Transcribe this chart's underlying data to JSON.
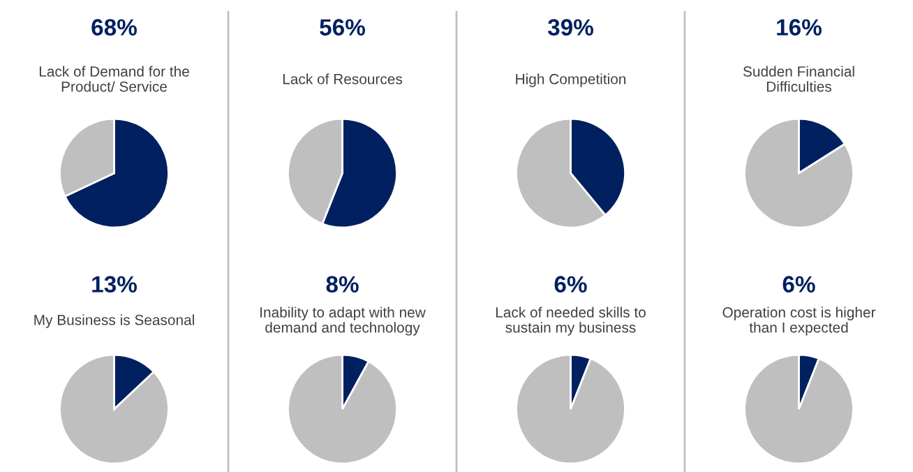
{
  "chart_data": [
    {
      "type": "pie",
      "title": "68%",
      "subtitle": "Lack of Demand for the\nProduct/ Service",
      "categories": [
        null,
        null
      ],
      "values": [
        68,
        32
      ],
      "colors": [
        "#002060",
        "#bfbfbf"
      ]
    },
    {
      "type": "pie",
      "title": "56%",
      "subtitle": "Lack of Resources",
      "categories": [
        null,
        null
      ],
      "values": [
        56,
        44
      ],
      "colors": [
        "#002060",
        "#bfbfbf"
      ]
    },
    {
      "type": "pie",
      "title": "39%",
      "subtitle": "High Competition",
      "categories": [
        null,
        null
      ],
      "values": [
        39,
        61
      ],
      "colors": [
        "#002060",
        "#bfbfbf"
      ]
    },
    {
      "type": "pie",
      "title": "16%",
      "subtitle": "Sudden Financial\nDifficulties",
      "categories": [
        null,
        null
      ],
      "values": [
        16,
        84
      ],
      "colors": [
        "#002060",
        "#bfbfbf"
      ]
    },
    {
      "type": "pie",
      "title": "13%",
      "subtitle": "My Business is Seasonal",
      "categories": [
        null,
        null
      ],
      "values": [
        13,
        87
      ],
      "colors": [
        "#002060",
        "#bfbfbf"
      ]
    },
    {
      "type": "pie",
      "title": "8%",
      "subtitle": "Inability to adapt with new\ndemand and technology",
      "categories": [
        null,
        null
      ],
      "values": [
        8,
        92
      ],
      "colors": [
        "#002060",
        "#bfbfbf"
      ]
    },
    {
      "type": "pie",
      "title": "6%",
      "subtitle": "Lack of needed skills to\nsustain my business",
      "categories": [
        null,
        null
      ],
      "values": [
        6,
        94
      ],
      "colors": [
        "#002060",
        "#bfbfbf"
      ]
    },
    {
      "type": "pie",
      "title": "6%",
      "subtitle": "Operation cost is higher\nthan I expected",
      "categories": [
        null,
        null
      ],
      "values": [
        6,
        94
      ],
      "colors": [
        "#002060",
        "#bfbfbf"
      ]
    }
  ]
}
